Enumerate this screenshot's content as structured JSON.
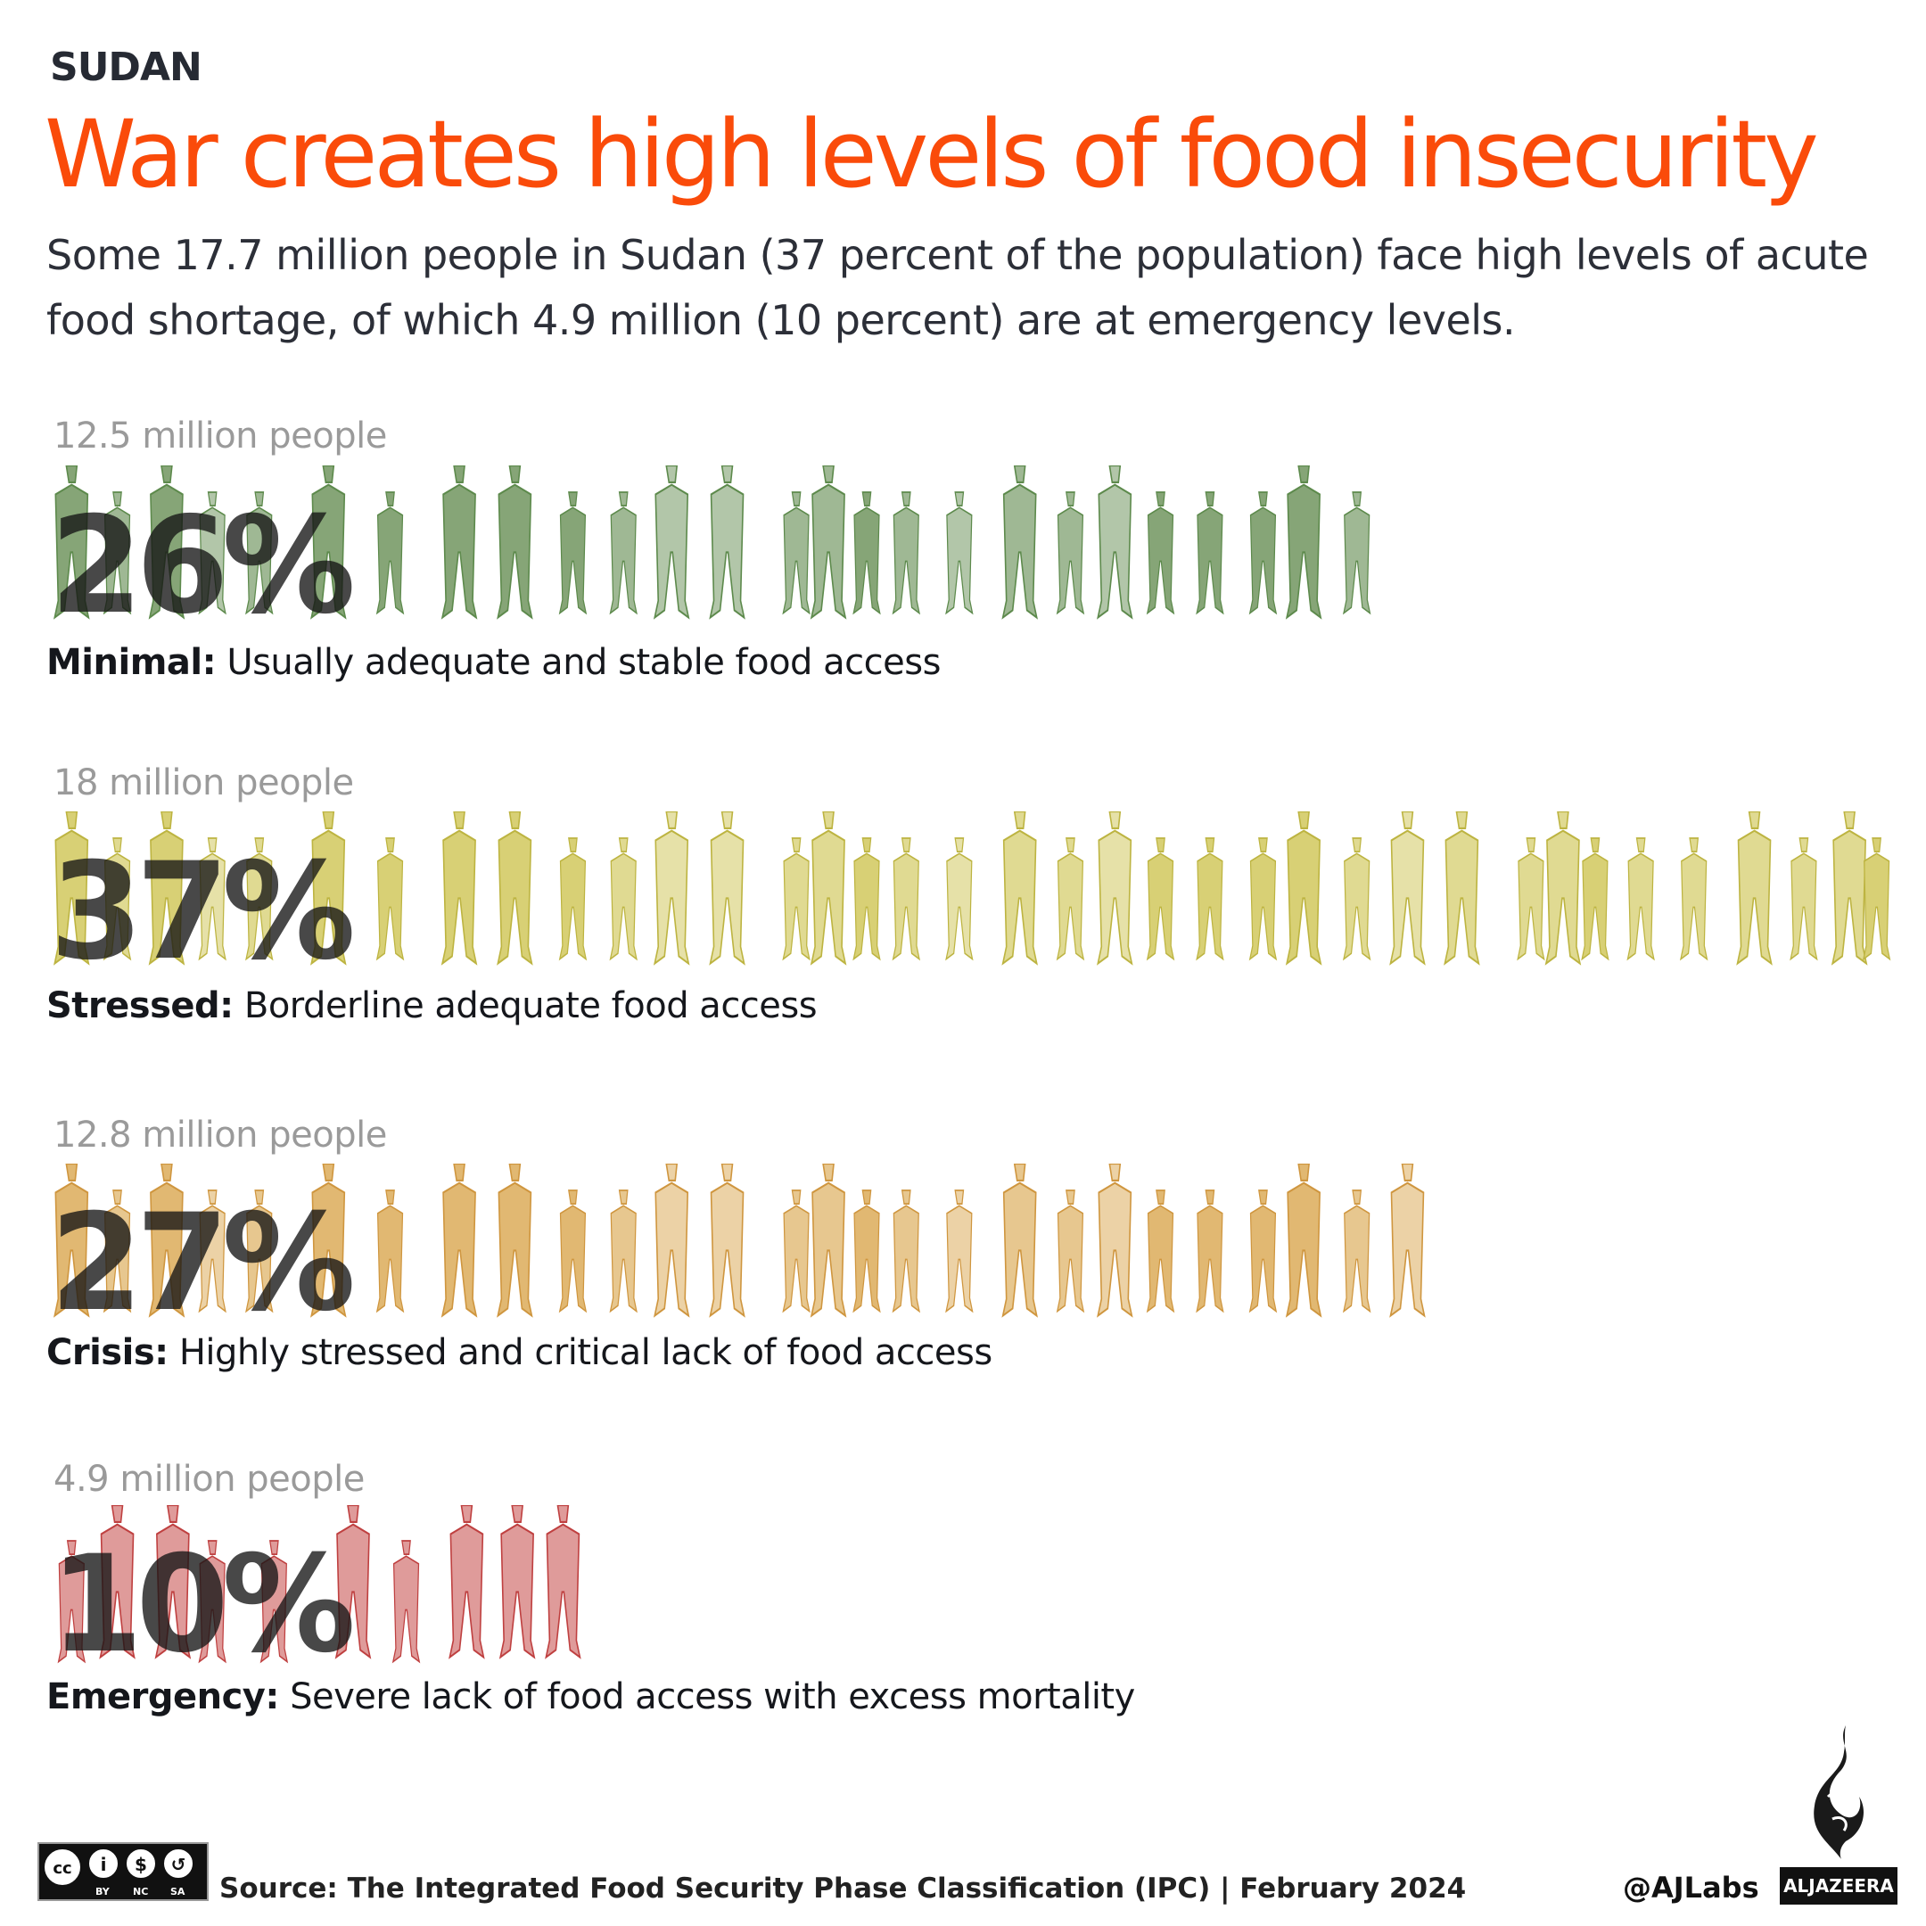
{
  "header": {
    "kicker": "SUDAN",
    "title": "War creates high levels of food insecurity",
    "subtitle": "Some 17.7 million people in Sudan (37 percent of the population) face high levels of acute food shortage, of which 4.9 million (10 percent) are at emergency levels."
  },
  "chart_data": {
    "type": "pictogram",
    "unit": "one figure per percent of population",
    "categories": [
      "Minimal",
      "Stressed",
      "Crisis",
      "Emergency"
    ],
    "series": [
      {
        "phase": "Minimal",
        "description": "Usually adequate and stable food access",
        "people_label": "12.5 million people",
        "people_millions": 12.5,
        "percent": 26,
        "percent_label": "26%",
        "color": "#7fa070",
        "stroke": "#5d8a4c"
      },
      {
        "phase": "Stressed",
        "description": "Borderline adequate food access",
        "people_label": "18 million people",
        "people_millions": 18,
        "percent": 37,
        "percent_label": "37%",
        "color": "#d6cd6e",
        "stroke": "#bdb441"
      },
      {
        "phase": "Crisis",
        "description": "Highly stressed and critical lack of food access",
        "people_label": "12.8 million people",
        "people_millions": 12.8,
        "percent": 27,
        "percent_label": "27%",
        "color": "#dfb46a",
        "stroke": "#cf963f"
      },
      {
        "phase": "Emergency",
        "description": "Severe lack of food access with excess mortality",
        "people_label": "4.9 million people",
        "people_millions": 4.9,
        "percent": 10,
        "percent_label": "10%",
        "color": "#d98a88",
        "stroke": "#bf4040"
      }
    ]
  },
  "footer": {
    "license_icons": [
      "cc-icon",
      "by-icon",
      "nc-icon",
      "sa-icon"
    ],
    "license_labels": [
      "BY",
      "NC",
      "SA"
    ],
    "source": "Source: The Integrated Food Security Phase Classification (IPC) | February 2024",
    "handle": "@AJLabs",
    "brand": "ALJAZEERA"
  }
}
